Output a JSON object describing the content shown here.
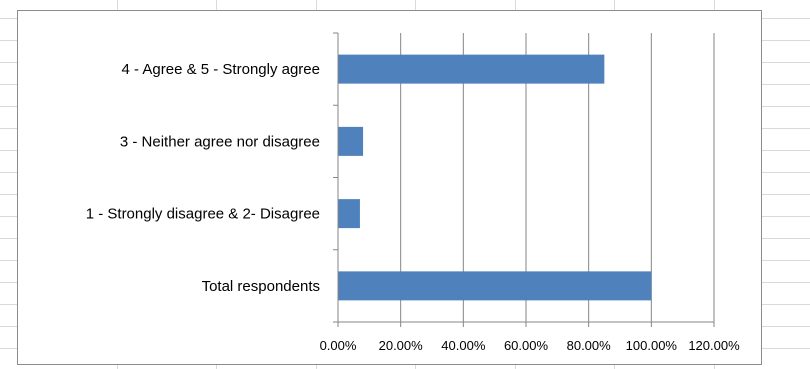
{
  "chart_data": {
    "type": "bar",
    "orientation": "horizontal",
    "categories": [
      "4 - Agree & 5 - Strongly agree",
      "3 - Neither agree nor disagree",
      "1 - Strongly disagree & 2- Disagree",
      "Total respondents"
    ],
    "values": [
      0.85,
      0.08,
      0.07,
      1.0
    ],
    "xlim": [
      0,
      1.2
    ],
    "x_ticks": [
      0,
      0.2,
      0.4,
      0.6,
      0.8,
      1.0,
      1.2
    ],
    "x_tick_labels": [
      "0.00%",
      "20.00%",
      "40.00%",
      "60.00%",
      "80.00%",
      "100.00%",
      "120.00%"
    ],
    "title": "",
    "xlabel": "",
    "ylabel": "",
    "grid": "vertical",
    "legend": "none",
    "colors": {
      "bar": "#4f81bd",
      "gridline": "#868686",
      "axis": "#868686"
    }
  }
}
